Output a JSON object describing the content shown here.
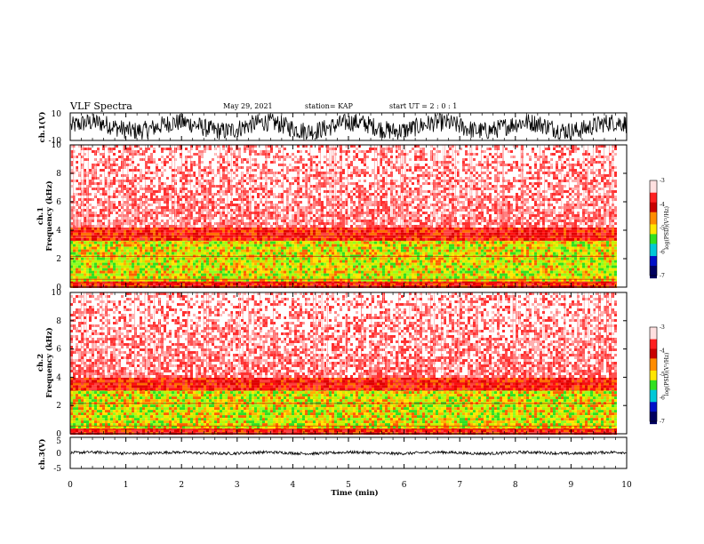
{
  "header": {
    "title": "VLF Spectra",
    "date": "May 29, 2021",
    "station": "station= KAP",
    "start": "start  UT =   2  : 0   : 1"
  },
  "colors": {
    "dark_red": "#c80000",
    "red": "#ff2020",
    "orange": "#ff8c00",
    "yellow": "#ffe600",
    "green": "#30e020",
    "cyan": "#00c8d8",
    "blue": "#0010c8"
  },
  "chart_data": [
    {
      "type": "line",
      "ylabel": "ch.1(V)",
      "ylim": [
        -10,
        10
      ],
      "yticks": [
        "10",
        "-10"
      ],
      "xlim": [
        0,
        10
      ],
      "description_values": {
        "mean": 0,
        "amplitude_typical": 9
      }
    },
    {
      "type": "heatmap",
      "ylabel": "ch.1\nFrequency (kHz)",
      "ylabel_lines": [
        "ch.1",
        "Frequency  (kHz)"
      ],
      "ylim": [
        0,
        10
      ],
      "yticks": [
        "0",
        "2",
        "4",
        "6",
        "8",
        "10"
      ],
      "xlim": [
        0,
        9.8
      ],
      "bands": [
        {
          "from_khz": 0,
          "to_khz": 0.5,
          "level": "red"
        },
        {
          "from_khz": 0.5,
          "to_khz": 3.4,
          "level": "yellow-green"
        },
        {
          "from_khz": 3.4,
          "to_khz": 4.2,
          "level": "red"
        },
        {
          "from_khz": 4.2,
          "to_khz": 10,
          "level": "pale-red"
        }
      ],
      "colorbar": {
        "label": "log(PSD)(V²/Hz)",
        "min": -7,
        "max": -3,
        "ticks": [
          "-3",
          "-4",
          "-5",
          "-6",
          "-7"
        ]
      }
    },
    {
      "type": "heatmap",
      "ylabel": "ch.2\nFrequency (kHz)",
      "ylabel_lines": [
        "ch.2",
        "Frequency  (kHz)"
      ],
      "ylim": [
        0,
        10
      ],
      "yticks": [
        "0",
        "2",
        "4",
        "6",
        "8",
        "10"
      ],
      "xlim": [
        0,
        9.8
      ],
      "bands": [
        {
          "from_khz": 0,
          "to_khz": 0.5,
          "level": "red"
        },
        {
          "from_khz": 0.5,
          "to_khz": 3.2,
          "level": "yellow-green"
        },
        {
          "from_khz": 3.2,
          "to_khz": 4.0,
          "level": "red"
        },
        {
          "from_khz": 4.0,
          "to_khz": 10,
          "level": "pale-red"
        }
      ],
      "colorbar": {
        "label": "log(PSD)(V²/Hz)",
        "min": -7,
        "max": -3,
        "ticks": [
          "-3",
          "-4",
          "-5",
          "-6",
          "-7"
        ]
      }
    },
    {
      "type": "line",
      "ylabel": "ch.3(V)",
      "ylim": [
        -5,
        5
      ],
      "yticks": [
        "5",
        "0",
        "-5"
      ],
      "xlim": [
        0,
        10
      ],
      "description_values": {
        "mean": 0,
        "amplitude_typical": 0.6
      }
    }
  ],
  "xaxis": {
    "label": "Time  (min)",
    "ticks": [
      "0",
      "1",
      "2",
      "3",
      "4",
      "5",
      "6",
      "7",
      "8",
      "9",
      "10"
    ],
    "range": [
      0,
      10
    ]
  }
}
